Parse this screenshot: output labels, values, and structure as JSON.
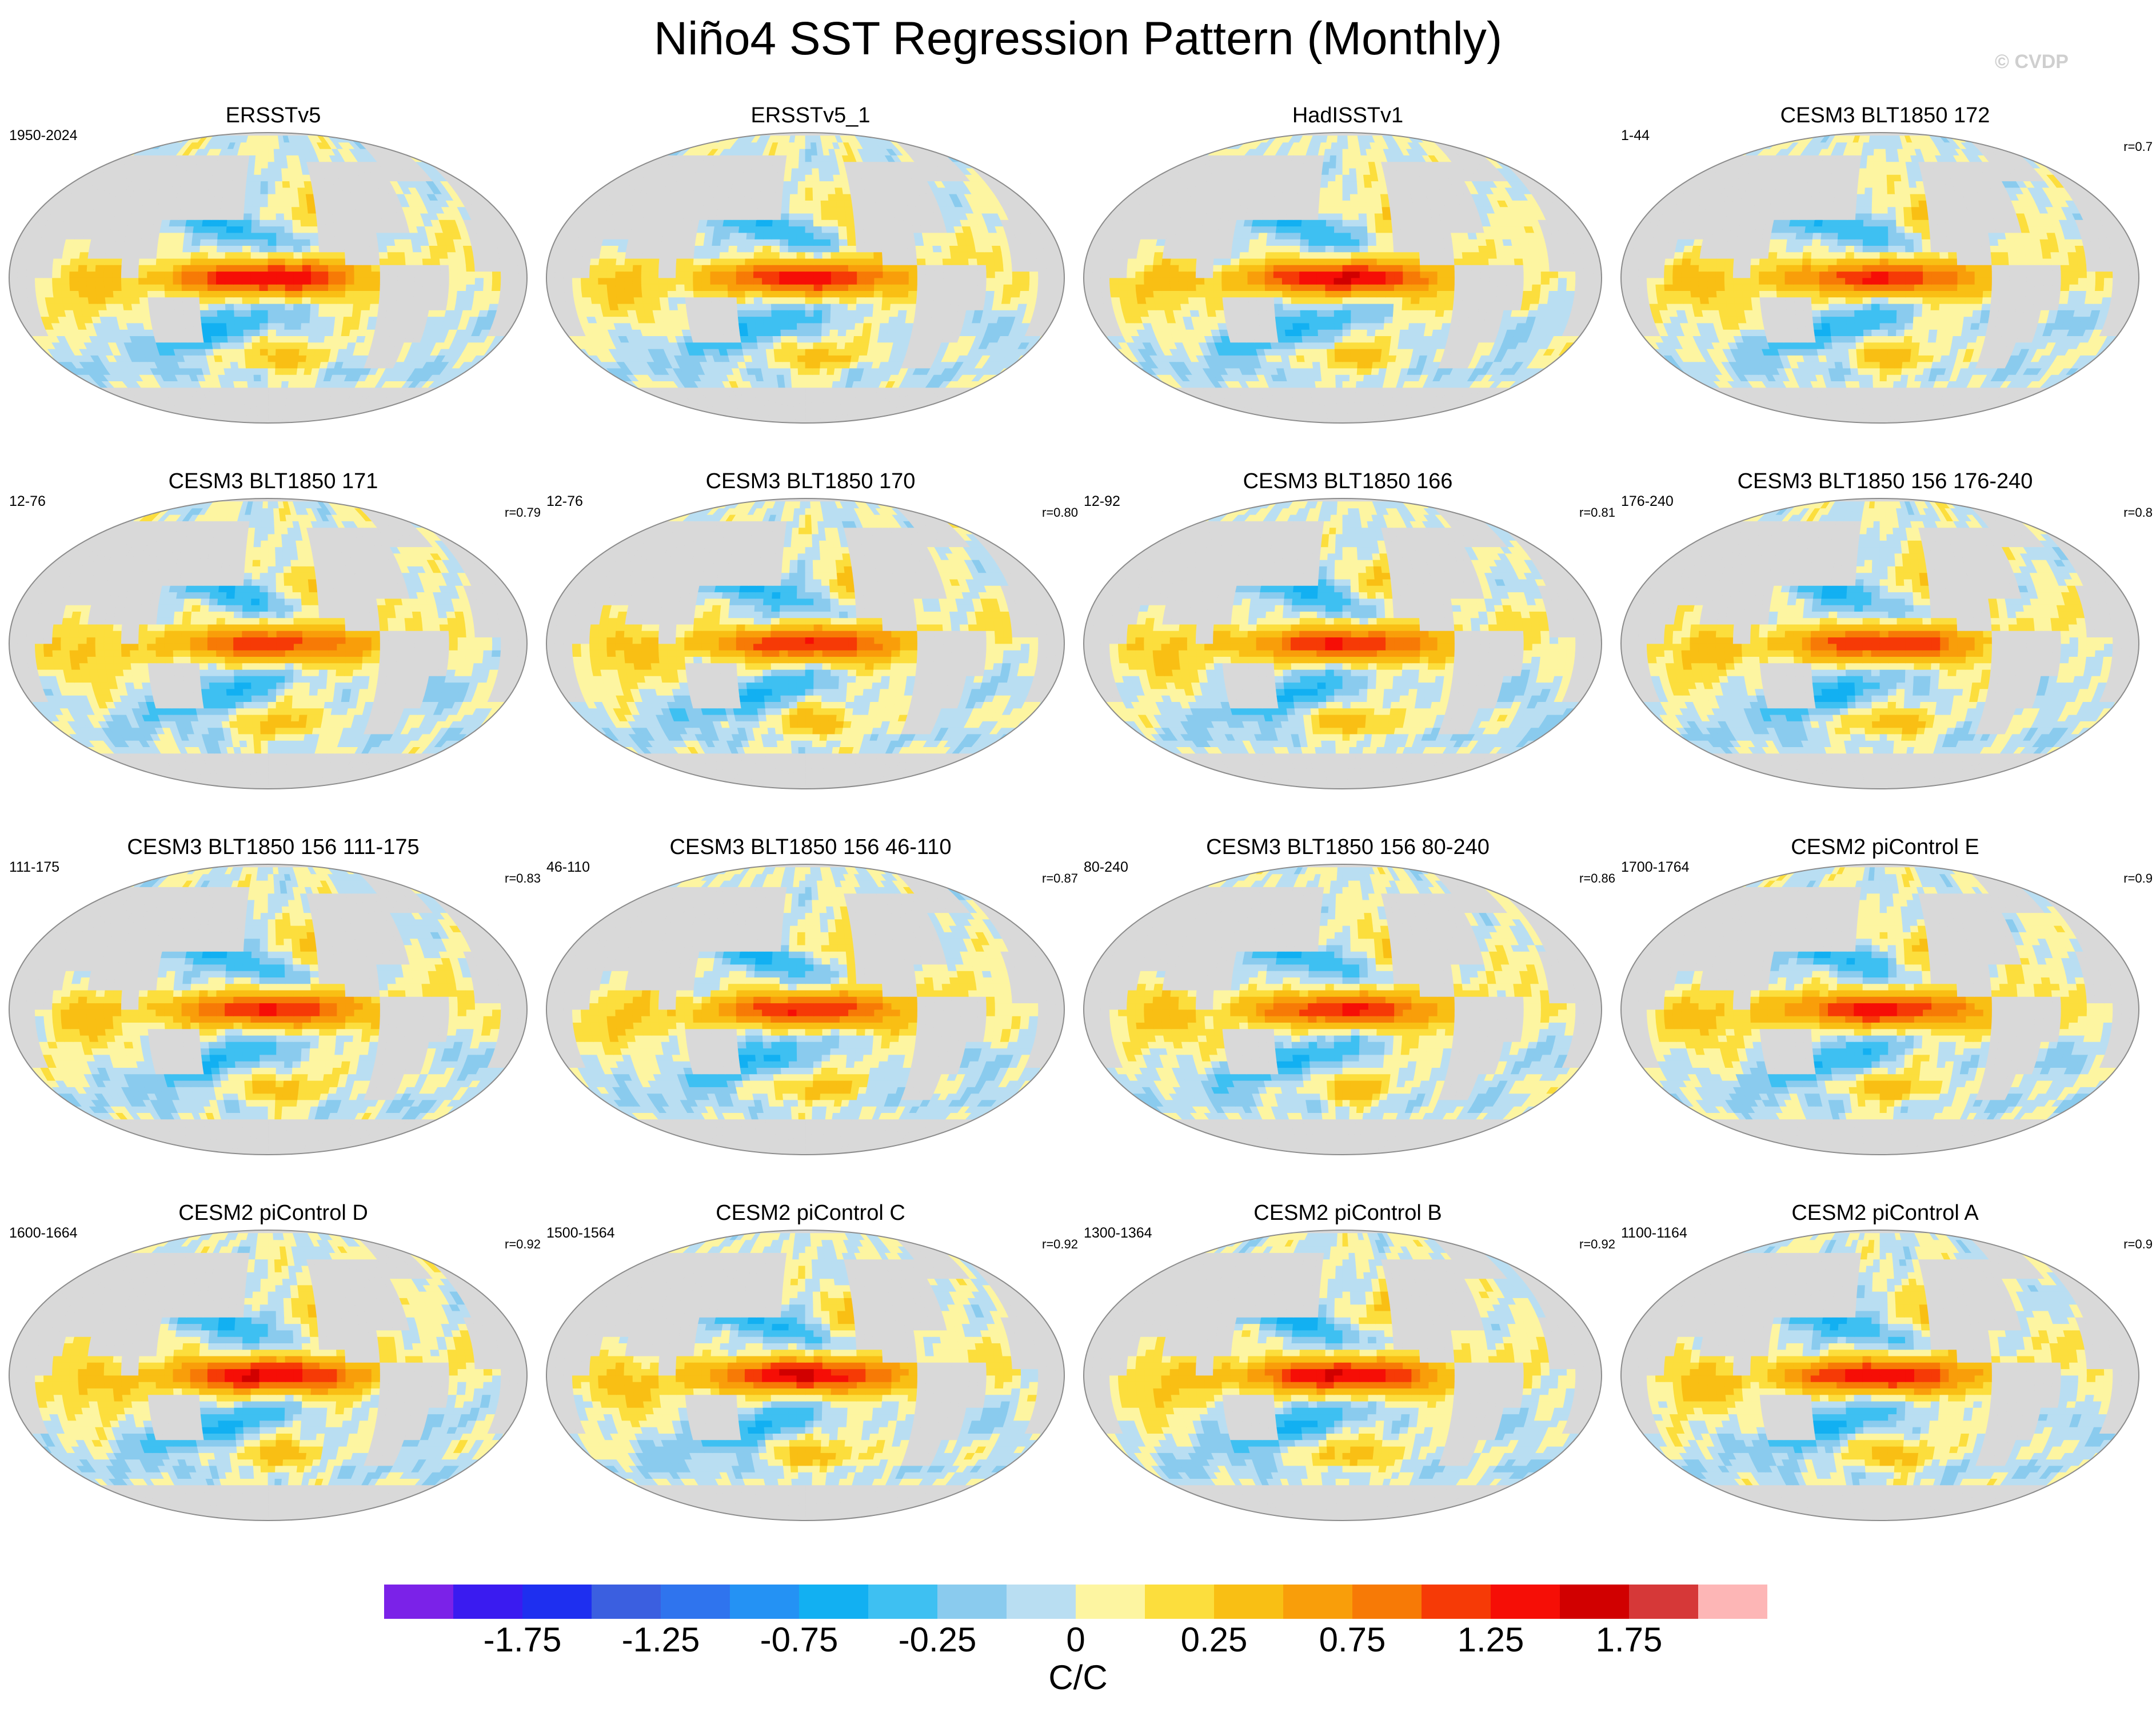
{
  "title": "Niño4 SST Regression Pattern (Monthly)",
  "watermark": "© CVDP",
  "chart_data": {
    "type": "heatmap",
    "title": "Niño4 SST Regression Pattern (Monthly)",
    "projection": "robinson-like global map, Pacific centered",
    "colorbar": {
      "units": "C/C",
      "tick_labels": [
        "-1.75",
        "-1.25",
        "-0.75",
        "-0.25",
        "0",
        "0.25",
        "0.75",
        "1.25",
        "1.75"
      ],
      "tick_values": [
        -1.75,
        -1.25,
        -0.75,
        -0.25,
        0,
        0.25,
        0.75,
        1.25,
        1.75
      ],
      "bins": [
        {
          "range": [
            -2.25,
            -2.0
          ],
          "color": "#7B22E8"
        },
        {
          "range": [
            -2.0,
            -1.75
          ],
          "color": "#3A1BF0"
        },
        {
          "range": [
            -1.75,
            -1.5
          ],
          "color": "#1E2FF0"
        },
        {
          "range": [
            -1.5,
            -1.25
          ],
          "color": "#3B5FE0"
        },
        {
          "range": [
            -1.25,
            -1.0
          ],
          "color": "#2F74EE"
        },
        {
          "range": [
            -1.0,
            -0.75
          ],
          "color": "#2492F4"
        },
        {
          "range": [
            -0.75,
            -0.5
          ],
          "color": "#12B0F2"
        },
        {
          "range": [
            -0.5,
            -0.25
          ],
          "color": "#3EC0F2"
        },
        {
          "range": [
            -0.25,
            -0.1
          ],
          "color": "#8ACBEE"
        },
        {
          "range": [
            -0.1,
            0
          ],
          "color": "#B9DEF2"
        },
        {
          "range": [
            0,
            0.1
          ],
          "color": "#FDF5A1"
        },
        {
          "range": [
            0.1,
            0.25
          ],
          "color": "#FCDE3D"
        },
        {
          "range": [
            0.25,
            0.5
          ],
          "color": "#F9BF14"
        },
        {
          "range": [
            0.5,
            0.75
          ],
          "color": "#F99E0A"
        },
        {
          "range": [
            0.75,
            1.0
          ],
          "color": "#F77A06"
        },
        {
          "range": [
            1.0,
            1.25
          ],
          "color": "#F63A06"
        },
        {
          "range": [
            1.25,
            1.5
          ],
          "color": "#F60E06"
        },
        {
          "range": [
            1.5,
            1.75
          ],
          "color": "#D10000"
        },
        {
          "range": [
            1.75,
            2.0
          ],
          "color": "#D63838"
        },
        {
          "range": [
            2.0,
            2.25
          ],
          "color": "#FDB6B6"
        }
      ]
    },
    "panels": [
      {
        "title": "ERSSTv5",
        "years": "1950-2024",
        "corr": "",
        "peak": 1.5
      },
      {
        "title": "ERSSTv5_1",
        "years": "",
        "corr": "",
        "peak": 1.3
      },
      {
        "title": "HadISSTv1",
        "years": "",
        "corr": "",
        "peak": 1.5
      },
      {
        "title": "CESM3 BLT1850 172",
        "years": "1-44",
        "corr": "r=0.7",
        "peak": 1.2
      },
      {
        "title": "CESM3 BLT1850 171",
        "years": "12-76",
        "corr": "r=0.79",
        "peak": 1.1
      },
      {
        "title": "CESM3 BLT1850 170",
        "years": "12-76",
        "corr": "r=0.80",
        "peak": 1.2
      },
      {
        "title": "CESM3 BLT1850 166",
        "years": "12-92",
        "corr": "r=0.81",
        "peak": 1.2
      },
      {
        "title": "CESM3 BLT1850 156 176-240",
        "years": "176-240",
        "corr": "r=0.8",
        "peak": 1.2
      },
      {
        "title": "CESM3 BLT1850 156 111-175",
        "years": "111-175",
        "corr": "r=0.83",
        "peak": 1.2
      },
      {
        "title": "CESM3 BLT1850 156 46-110",
        "years": "46-110",
        "corr": "r=0.87",
        "peak": 1.2
      },
      {
        "title": "CESM3 BLT1850 156 80-240",
        "years": "80-240",
        "corr": "r=0.86",
        "peak": 1.2
      },
      {
        "title": "CESM2 piControl E",
        "years": "1700-1764",
        "corr": "r=0.9",
        "peak": 1.3
      },
      {
        "title": "CESM2 piControl D",
        "years": "1600-1664",
        "corr": "r=0.92",
        "peak": 1.5
      },
      {
        "title": "CESM2 piControl C",
        "years": "1500-1564",
        "corr": "r=0.92",
        "peak": 1.5
      },
      {
        "title": "CESM2 piControl B",
        "years": "1300-1364",
        "corr": "r=0.92",
        "peak": 1.5
      },
      {
        "title": "CESM2 piControl A",
        "years": "1100-1164",
        "corr": "r=0.9",
        "peak": 1.4
      }
    ]
  },
  "land_color": "#D9D9D9",
  "ocean_outline_color": "#8C8C8C"
}
